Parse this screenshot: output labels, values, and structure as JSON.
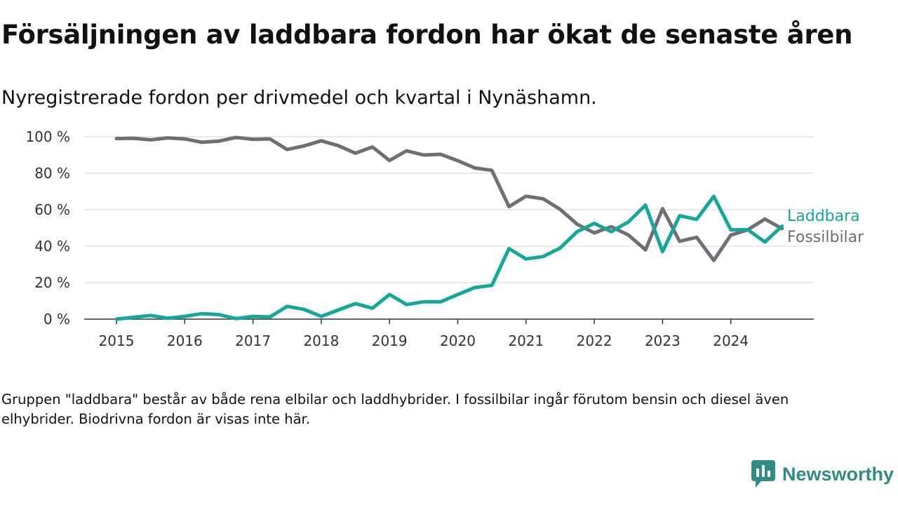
{
  "header": {
    "title": "Försäljningen av laddbara fordon har ökat de senaste åren",
    "subtitle": "Nyregistrerade fordon per drivmedel och kvartal i Nynäshamn."
  },
  "footer": {
    "note": "Gruppen \"laddbara\" består av både rena elbilar och laddhybrider. I fossilbilar ingår förutom bensin och diesel även elhybrider. Biodrivna fordon är visas inte här.",
    "brand": "Newsworthy",
    "brand_icon": "newsworthy-logo-icon",
    "brand_color": "#2f8c86"
  },
  "chart_data": {
    "type": "line",
    "title": "Försäljningen av laddbara fordon har ökat de senaste åren",
    "subtitle": "Nyregistrerade fordon per drivmedel och kvartal i Nynäshamn.",
    "xlabel": "",
    "ylabel": "",
    "x_start": 2015.0,
    "x_step": 0.25,
    "xlim": [
      2014.55,
      2025.25
    ],
    "ylim": [
      0,
      100
    ],
    "grid": true,
    "x_ticks": [
      2015,
      2016,
      2017,
      2018,
      2019,
      2020,
      2021,
      2022,
      2023,
      2024
    ],
    "x_tick_labels": [
      "2015",
      "2016",
      "2017",
      "2018",
      "2019",
      "2020",
      "2021",
      "2022",
      "2023",
      "2024"
    ],
    "y_ticks": [
      0,
      20,
      40,
      60,
      80,
      100
    ],
    "y_tick_labels": [
      "0 %",
      "20 %",
      "40 %",
      "60 %",
      "80 %",
      "100 %"
    ],
    "legend_position": "right, inline at line ends",
    "series": [
      {
        "name": "Laddbara",
        "color": "#14a89a",
        "values": [
          0,
          1,
          2,
          0.5,
          1.5,
          3,
          2.5,
          0.3,
          1.5,
          1.2,
          7,
          5.3,
          1.5,
          5,
          8.5,
          6,
          13.5,
          8,
          9.5,
          9.5,
          13.5,
          17.3,
          18.5,
          38.7,
          33,
          34.3,
          39,
          48,
          52.5,
          48,
          53.3,
          62.5,
          37,
          56.7,
          54.7,
          67.3,
          49,
          49,
          42.3,
          51
        ]
      },
      {
        "name": "Fossilbilar",
        "color": "#6e6e76",
        "values": [
          99,
          99.2,
          98.3,
          99.4,
          98.8,
          97,
          97.6,
          99.6,
          98.6,
          98.8,
          93,
          95,
          97.8,
          95.1,
          91,
          94.4,
          87,
          92.3,
          90,
          90.4,
          86.9,
          82.9,
          81.6,
          61.7,
          67.4,
          66,
          60.2,
          52,
          47.3,
          50.7,
          46.1,
          38,
          60.6,
          42.7,
          44.9,
          32.2,
          46.1,
          49,
          54.9,
          49.6
        ]
      }
    ]
  }
}
